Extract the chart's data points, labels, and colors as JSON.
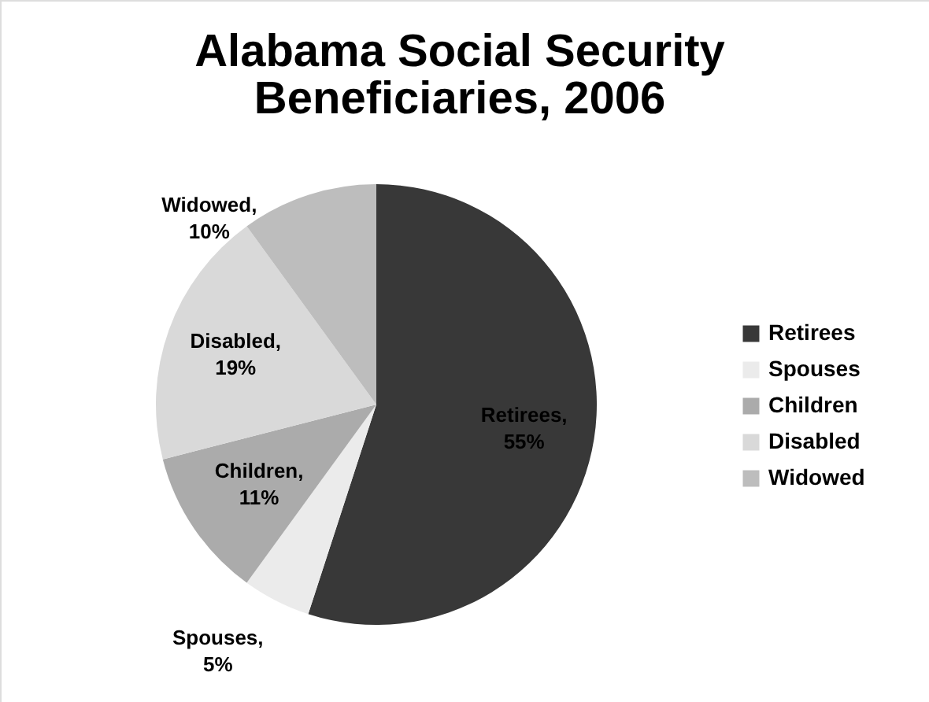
{
  "chart_data": {
    "type": "pie",
    "title": [
      "Alabama Social Security",
      "Beneficiaries, 2006"
    ],
    "categories": [
      "Retirees",
      "Spouses",
      "Children",
      "Disabled",
      "Widowed"
    ],
    "values": [
      55,
      5,
      11,
      19,
      10
    ],
    "colors": [
      "#383838",
      "#ebebeb",
      "#ababab",
      "#d9d9d9",
      "#bdbdbd"
    ],
    "value_labels": [
      "Retirees, 55%",
      "Spouses, 5%",
      "Children, 11%",
      "Disabled, 19%",
      "Widowed, 10%"
    ],
    "legend": "right"
  }
}
